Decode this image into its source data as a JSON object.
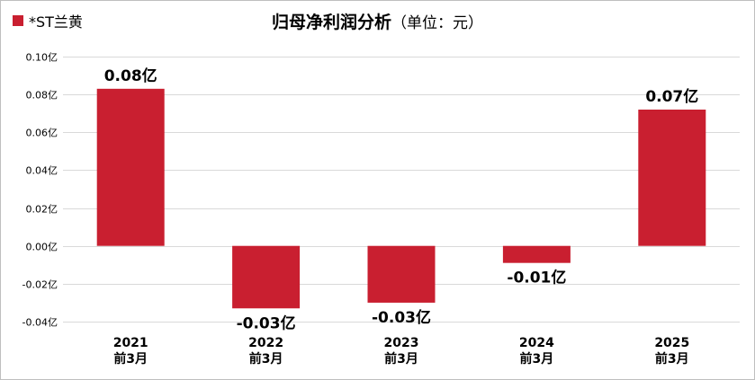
{
  "legend": {
    "label": "*ST兰黄",
    "color": "#c91f30"
  },
  "title": {
    "main": "归母净利润分析",
    "unit": "（单位：元）"
  },
  "colors": {
    "bar": "#c91f30",
    "grid": "#d9d9d9",
    "axis_text": "#000000"
  },
  "chart_data": {
    "type": "bar",
    "title": "归母净利润分析（单位：元）",
    "categories": [
      [
        "2021",
        "前3月"
      ],
      [
        "2022",
        "前3月"
      ],
      [
        "2023",
        "前3月"
      ],
      [
        "2024",
        "前3月"
      ],
      [
        "2025",
        "前3月"
      ]
    ],
    "series": [
      {
        "name": "*ST兰黄",
        "values": [
          0.083,
          -0.033,
          -0.03,
          -0.009,
          0.072
        ]
      }
    ],
    "data_labels": [
      "0.08亿",
      "-0.03亿",
      "-0.03亿",
      "-0.01亿",
      "0.07亿"
    ],
    "yticks": [
      -0.04,
      -0.02,
      0.0,
      0.02,
      0.04,
      0.06,
      0.08,
      0.1
    ],
    "ytick_labels": [
      "-0.04亿",
      "-0.02亿",
      "0.00亿",
      "0.02亿",
      "0.04亿",
      "0.06亿",
      "0.08亿",
      "0.10亿"
    ],
    "ylim": [
      -0.04,
      0.1
    ],
    "xlabel": "",
    "ylabel": "",
    "grid": true,
    "legend_position": "top-left"
  }
}
